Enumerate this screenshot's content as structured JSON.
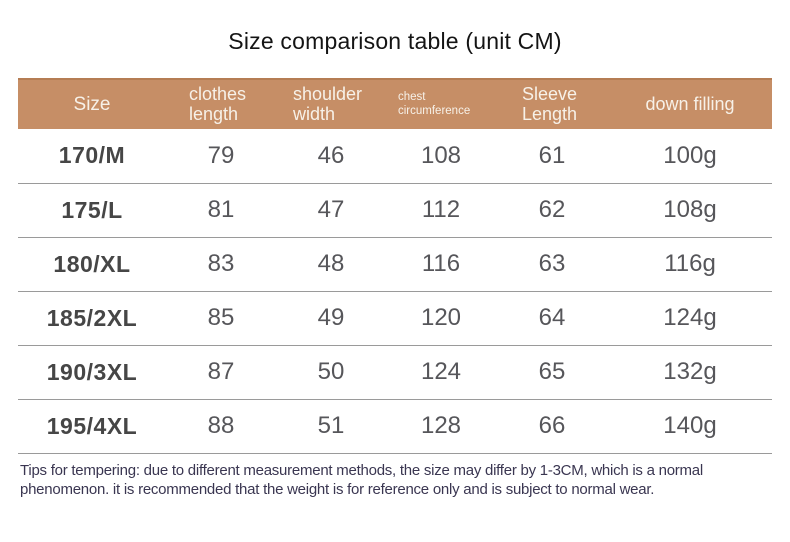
{
  "title": "Size comparison table (unit CM)",
  "chart_data": {
    "type": "table",
    "title": "Size comparison table (unit CM)",
    "columns": [
      "Size",
      "clothes length",
      "shoulder width",
      "chest circumference",
      "Sleeve Length",
      "down filling"
    ],
    "rows": [
      [
        "170/M",
        "79",
        "46",
        "108",
        "61",
        "100g"
      ],
      [
        "175/L",
        "81",
        "47",
        "112",
        "62",
        "108g"
      ],
      [
        "180/XL",
        "83",
        "48",
        "116",
        "63",
        "116g"
      ],
      [
        "185/2XL",
        "85",
        "49",
        "120",
        "64",
        "124g"
      ],
      [
        "190/3XL",
        "87",
        "50",
        "124",
        "65",
        "132g"
      ],
      [
        "195/4XL",
        "88",
        "51",
        "128",
        "66",
        "140g"
      ]
    ]
  },
  "footer": {
    "tips": "Tips for tempering: due to different measurement methods, the size may differ by 1-3CM, which is a normal phenomenon. it is recommended that the weight is for reference only and is subject to normal wear."
  },
  "colors": {
    "header_bg": "#c68e66",
    "header_text": "#f7f1e8",
    "value_text": "#56565a",
    "size_text": "#464646",
    "divider": "#9a9a9a",
    "title_text": "#141414",
    "tips_text": "#3a3651"
  }
}
